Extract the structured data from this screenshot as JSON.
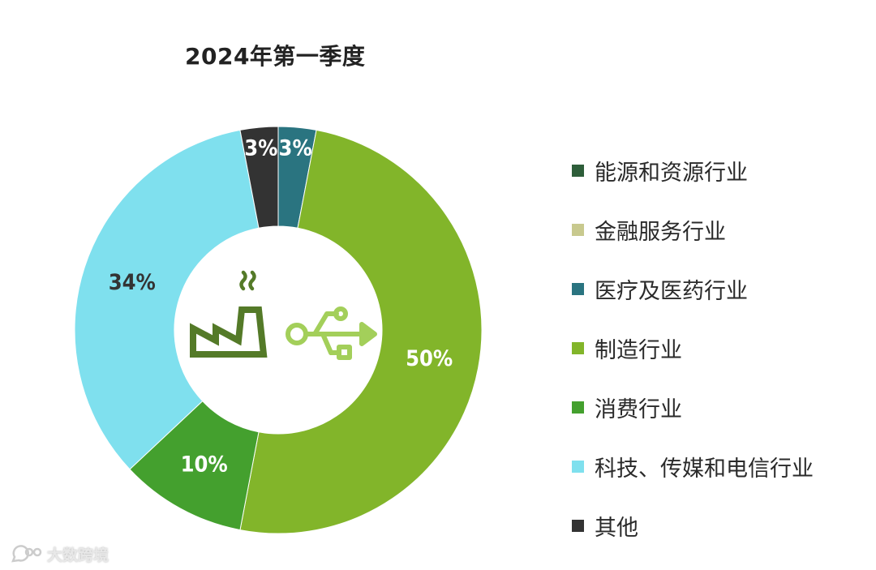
{
  "chart_data": {
    "type": "pie",
    "title": "2024年第一季度",
    "categories": [
      "能源和资源行业",
      "金融服务行业",
      "医疗及医药行业",
      "制造行业",
      "消费行业",
      "科技、传媒和电信行业",
      "其他"
    ],
    "values": [
      0,
      0,
      3,
      50,
      10,
      34,
      3
    ],
    "data_labels": [
      "",
      "",
      "3%",
      "50%",
      "10%",
      "34%",
      "3%"
    ],
    "colors": [
      "#2e5e3a",
      "#c8c98e",
      "#2a7480",
      "#82b52a",
      "#44a02e",
      "#7fe0ee",
      "#333333"
    ],
    "label_colors": [
      "#ffffff",
      "#ffffff",
      "#ffffff",
      "#ffffff",
      "#ffffff",
      "#333333",
      "#ffffff"
    ],
    "legend_position": "right",
    "donut": true,
    "center_icons": [
      "factory-icon",
      "usb-icon"
    ]
  },
  "watermark": {
    "text": "大数跨境",
    "icon": "chat-bubble-logo-icon"
  }
}
